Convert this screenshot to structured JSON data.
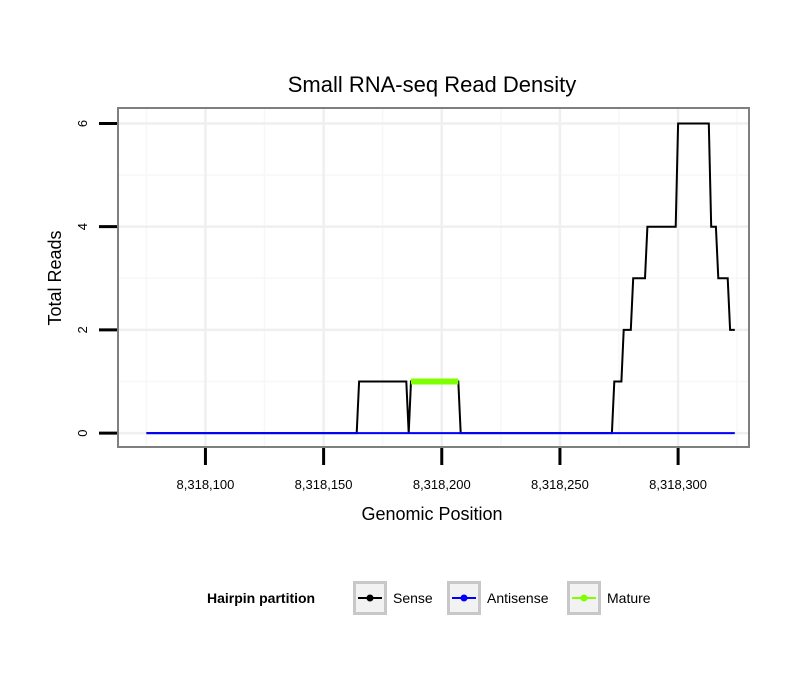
{
  "chart_data": {
    "type": "line",
    "title": "Small RNA-seq Read Density",
    "xlabel": "Genomic Position",
    "ylabel": "Total Reads",
    "xlim": [
      8318063,
      8318330
    ],
    "ylim": [
      -0.27,
      6.3
    ],
    "x_ticks": [
      8318100,
      8318150,
      8318200,
      8318250,
      8318300
    ],
    "x_tick_labels": [
      "8,318,100",
      "8,318,150",
      "8,318,200",
      "8,318,250",
      "8,318,300"
    ],
    "y_ticks": [
      0,
      2,
      4,
      6
    ],
    "y_tick_labels": [
      "0",
      "2",
      "4",
      "6"
    ],
    "grid": true,
    "legend": {
      "title": "Hairpin partition",
      "position": "bottom",
      "entries": [
        "Sense",
        "Antisense",
        "Mature"
      ]
    },
    "series": [
      {
        "name": "Sense",
        "color": "#000000",
        "x": [
          8318075,
          8318164,
          8318165,
          8318185,
          8318186,
          8318187,
          8318207,
          8318208,
          8318272,
          8318273,
          8318276,
          8318277,
          8318280,
          8318281,
          8318283,
          8318284,
          8318286,
          8318287,
          8318292,
          8318293,
          8318299,
          8318300,
          8318313,
          8318314,
          8318316,
          8318317,
          8318321,
          8318322,
          8318324
        ],
        "values": [
          0,
          0,
          1,
          1,
          0,
          1,
          1,
          0,
          0,
          1,
          1,
          2,
          2,
          3,
          3,
          3,
          3,
          4,
          4,
          4,
          4,
          6,
          6,
          4,
          4,
          3,
          3,
          2,
          2
        ]
      },
      {
        "name": "Antisense",
        "color": "#0000ff",
        "x": [
          8318075,
          8318324
        ],
        "values": [
          0,
          0
        ]
      },
      {
        "name": "Mature",
        "color": "#7fff00",
        "x": [
          8318187,
          8318207
        ],
        "values": [
          1,
          1
        ]
      }
    ]
  }
}
